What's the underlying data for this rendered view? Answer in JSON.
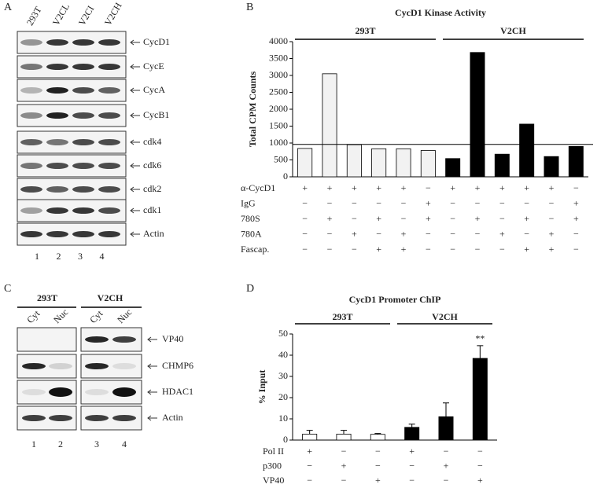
{
  "panel_labels": [
    "A",
    "B",
    "C",
    "D"
  ],
  "blot_a": {
    "lanes": [
      "293T",
      "V2CL",
      "V2CI",
      "V2CH"
    ],
    "rows": [
      "CycD1",
      "CycE",
      "CycA",
      "CycB1",
      "cdk4",
      "cdk6",
      "cdk2",
      "cdk1",
      "Actin"
    ],
    "lane_numbers": [
      1,
      2,
      3,
      4
    ]
  },
  "blot_c": {
    "groups": [
      "293T",
      "V2CH"
    ],
    "lanes": [
      "Cyt",
      "Nuc",
      "Cyt",
      "Nuc"
    ],
    "rows": [
      "VP40",
      "CHMP6",
      "HDAC1",
      "Actin"
    ],
    "lane_numbers": [
      1,
      2,
      3,
      4
    ]
  },
  "chart_data": [
    {
      "type": "bar",
      "title": "CycD1 Kinase Activity",
      "y_label": "Total CPM Counts",
      "values": [
        840,
        3050,
        950,
        830,
        830,
        780,
        540,
        3680,
        670,
        1560,
        600,
        900
      ],
      "groups": [
        {
          "label": "293T",
          "color": "#f2f2f2"
        },
        {
          "label": "V2CH",
          "color": "#000000"
        }
      ],
      "reference_line": 960,
      "ylim": [
        0,
        4000
      ],
      "yticks": [
        0,
        500,
        1000,
        1500,
        2000,
        2500,
        3000,
        3500,
        4000
      ],
      "conditions": [
        {
          "label": "α-CycD1",
          "signs": [
            "+",
            "+",
            "+",
            "+",
            "+",
            "−",
            "+",
            "+",
            "+",
            "+",
            "+",
            "−"
          ]
        },
        {
          "label": "IgG",
          "signs": [
            "−",
            "−",
            "−",
            "−",
            "−",
            "+",
            "−",
            "−",
            "−",
            "−",
            "−",
            "+"
          ]
        },
        {
          "label": "780S",
          "signs": [
            "−",
            "+",
            "−",
            "+",
            "−",
            "+",
            "−",
            "+",
            "−",
            "+",
            "−",
            "+"
          ]
        },
        {
          "label": "780A",
          "signs": [
            "−",
            "−",
            "+",
            "−",
            "+",
            "−",
            "−",
            "−",
            "+",
            "−",
            "+",
            "−"
          ]
        },
        {
          "label": "Fascap.",
          "signs": [
            "−",
            "−",
            "−",
            "+",
            "+",
            "−",
            "−",
            "−",
            "−",
            "+",
            "+",
            "−"
          ]
        }
      ]
    },
    {
      "type": "bar",
      "title": "CycD1 Promoter ChIP",
      "y_label": "% Input",
      "values": [
        2.8,
        2.8,
        2.7,
        6,
        11,
        38.5
      ],
      "errors": [
        1.8,
        1.8,
        0.4,
        1.5,
        6.5,
        6
      ],
      "groups": [
        {
          "label": "293T",
          "color": "#ffffff"
        },
        {
          "label": "V2CH",
          "color": "#000000"
        }
      ],
      "annotation": "**",
      "ylim": [
        0,
        50
      ],
      "yticks": [
        0,
        10,
        20,
        30,
        40,
        50
      ],
      "conditions": [
        {
          "label": "Pol II",
          "signs": [
            "+",
            "−",
            "−",
            "+",
            "−",
            "−"
          ]
        },
        {
          "label": "p300",
          "signs": [
            "−",
            "+",
            "−",
            "−",
            "+",
            "−"
          ]
        },
        {
          "label": "VP40",
          "signs": [
            "−",
            "−",
            "+",
            "−",
            "−",
            "+"
          ]
        }
      ]
    }
  ]
}
